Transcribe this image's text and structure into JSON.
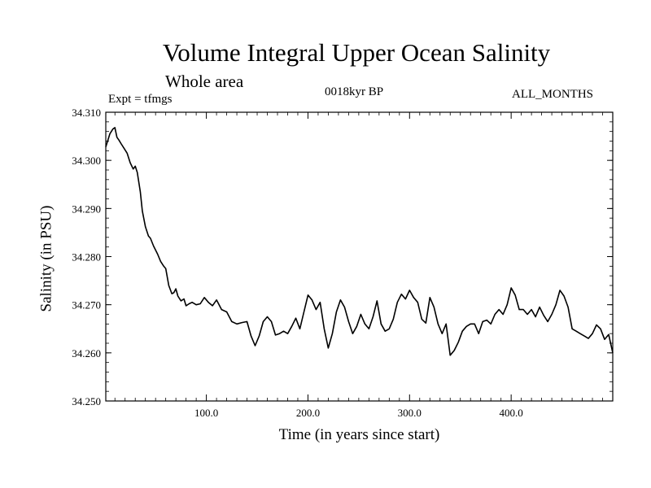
{
  "chart_data": {
    "type": "line",
    "title": "Volume Integral Upper Ocean Salinity",
    "subtitle": "Whole area",
    "annotations": {
      "experiment": "Expt = tfmgs",
      "period": "0018kyr BP",
      "months": "ALL_MONTHS"
    },
    "xlabel": "Time (in years since start)",
    "ylabel": "Salinity (in PSU)",
    "xlim": [
      1,
      500
    ],
    "ylim": [
      34.25,
      34.31
    ],
    "xticks": [
      {
        "value": 100,
        "label": "100.0"
      },
      {
        "value": 200,
        "label": "200.0"
      },
      {
        "value": 300,
        "label": "300.0"
      },
      {
        "value": 400,
        "label": "400.0"
      }
    ],
    "yticks": [
      {
        "value": 34.25,
        "label": "34.250"
      },
      {
        "value": 34.26,
        "label": "34.260"
      },
      {
        "value": 34.27,
        "label": "34.270"
      },
      {
        "value": 34.28,
        "label": "34.280"
      },
      {
        "value": 34.29,
        "label": "34.290"
      },
      {
        "value": 34.3,
        "label": "34.300"
      },
      {
        "value": 34.31,
        "label": "34.310"
      }
    ],
    "grid": false,
    "series": [
      {
        "color": "#000000",
        "x": [
          1,
          5,
          8,
          10,
          12,
          14,
          16,
          19,
          22,
          25,
          28,
          30,
          32,
          35,
          37,
          40,
          43,
          45,
          48,
          52,
          55,
          58,
          60,
          63,
          66,
          68,
          70,
          72,
          75,
          78,
          80,
          83,
          86,
          90,
          94,
          98,
          102,
          106,
          110,
          115,
          120,
          125,
          130,
          135,
          140,
          144,
          148,
          152,
          156,
          160,
          164,
          168,
          172,
          176,
          180,
          184,
          188,
          192,
          196,
          200,
          204,
          208,
          212,
          216,
          220,
          224,
          228,
          232,
          236,
          240,
          244,
          248,
          252,
          256,
          260,
          264,
          268,
          272,
          276,
          280,
          284,
          288,
          292,
          296,
          300,
          304,
          308,
          312,
          316,
          320,
          324,
          328,
          332,
          336,
          340,
          344,
          348,
          352,
          356,
          360,
          364,
          368,
          372,
          376,
          380,
          384,
          388,
          392,
          396,
          400,
          404,
          408,
          412,
          416,
          420,
          424,
          428,
          432,
          436,
          440,
          444,
          448,
          452,
          456,
          460,
          464,
          468,
          472,
          476,
          480,
          484,
          488,
          492,
          496,
          500
        ],
        "values": [
          34.3028,
          34.3055,
          34.3065,
          34.3068,
          34.3048,
          34.3042,
          34.3035,
          34.3025,
          34.3015,
          34.2995,
          34.2982,
          34.2988,
          34.2975,
          34.2935,
          34.2895,
          34.2862,
          34.2843,
          34.2838,
          34.2822,
          34.2805,
          34.279,
          34.278,
          34.2775,
          34.274,
          34.2723,
          34.2725,
          34.2733,
          34.2718,
          34.2708,
          34.2712,
          34.2698,
          34.2702,
          34.2705,
          34.27,
          34.2702,
          34.2715,
          34.2705,
          34.2698,
          34.271,
          34.269,
          34.2685,
          34.2665,
          34.266,
          34.2663,
          34.2665,
          34.2635,
          34.2615,
          34.2635,
          34.2665,
          34.2675,
          34.2665,
          34.2637,
          34.264,
          34.2645,
          34.264,
          34.2655,
          34.2672,
          34.265,
          34.2685,
          34.272,
          34.271,
          34.269,
          34.2705,
          34.265,
          34.261,
          34.264,
          34.2685,
          34.271,
          34.2695,
          34.2665,
          34.264,
          34.2655,
          34.268,
          34.266,
          34.265,
          34.2675,
          34.2708,
          34.266,
          34.2645,
          34.265,
          34.267,
          34.2705,
          34.2722,
          34.2712,
          34.273,
          34.2715,
          34.2705,
          34.267,
          34.2662,
          34.2715,
          34.2695,
          34.266,
          34.264,
          34.266,
          34.2595,
          34.2605,
          34.2622,
          34.2645,
          34.2655,
          34.266,
          34.266,
          34.264,
          34.2665,
          34.2668,
          34.266,
          34.268,
          34.269,
          34.268,
          34.27,
          34.2735,
          34.272,
          34.269,
          34.269,
          34.268,
          34.269,
          34.2675,
          34.2695,
          34.2678,
          34.2665,
          34.268,
          34.27,
          34.273,
          34.2718,
          34.2695,
          34.265,
          34.2645,
          34.264,
          34.2635,
          34.263,
          34.264,
          34.2658,
          34.265,
          34.2628,
          34.2638,
          34.26
        ]
      }
    ]
  }
}
